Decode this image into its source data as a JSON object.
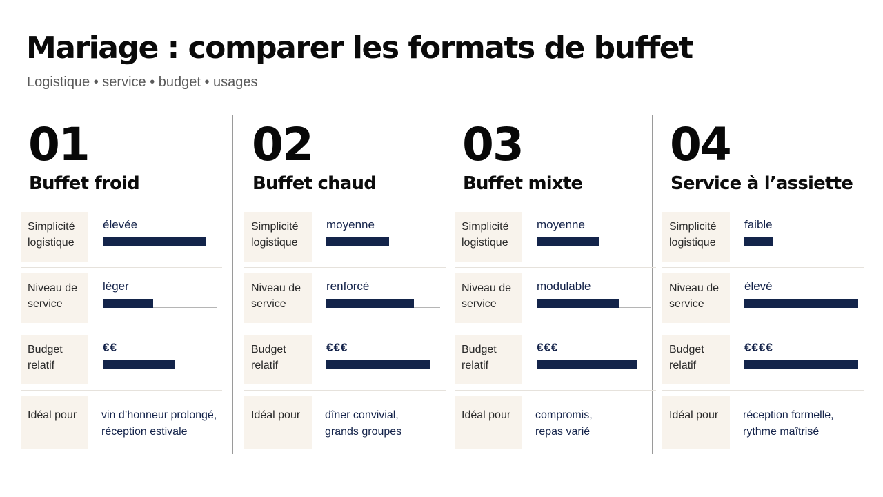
{
  "title": "Mariage : comparer les formats de buffet",
  "subtitle": "Logistique • service • budget • usages",
  "labels": {
    "simplicite_1": "Simplicité",
    "simplicite_2": "logistique",
    "service_1": "Niveau de",
    "service_2": "service",
    "budget_1": "Budget",
    "budget_2": "relatif",
    "ideal": "Idéal pour"
  },
  "colors": {
    "bar": "#13244a",
    "label_bg": "#f8f3ec",
    "value_text": "#14234a"
  },
  "columns": [
    {
      "number": "01",
      "name": "Buffet froid",
      "simplicite": {
        "value": "élevée",
        "level": 0.9
      },
      "service": {
        "value": "léger",
        "level": 0.44
      },
      "budget": {
        "value": "€€",
        "level": 0.63
      },
      "ideal": [
        "vin d’honneur prolongé,",
        "réception estivale"
      ]
    },
    {
      "number": "02",
      "name": "Buffet chaud",
      "simplicite": {
        "value": "moyenne",
        "level": 0.55
      },
      "service": {
        "value": "renforcé",
        "level": 0.77
      },
      "budget": {
        "value": "€€€",
        "level": 0.91
      },
      "ideal": [
        "dîner convivial,",
        "grands groupes"
      ]
    },
    {
      "number": "03",
      "name": "Buffet mixte",
      "simplicite": {
        "value": "moyenne",
        "level": 0.55
      },
      "service": {
        "value": "modulable",
        "level": 0.73
      },
      "budget": {
        "value": "€€€",
        "level": 0.88
      },
      "ideal": [
        "compromis,",
        "repas varié"
      ]
    },
    {
      "number": "04",
      "name": "Service à l’assiette",
      "simplicite": {
        "value": "faible",
        "level": 0.25
      },
      "service": {
        "value": "élevé",
        "level": 1.0
      },
      "budget": {
        "value": "€€€€",
        "level": 1.0
      },
      "ideal": [
        "réception formelle,",
        "rythme maîtrisé"
      ]
    }
  ]
}
